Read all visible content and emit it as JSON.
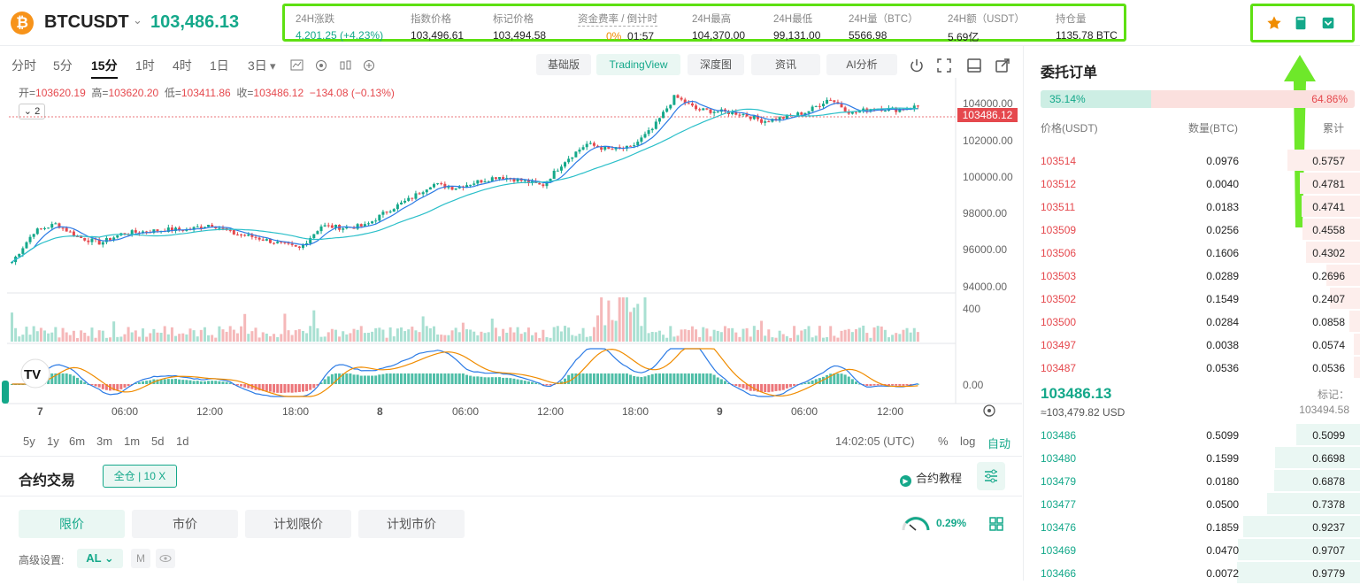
{
  "header": {
    "coin_glyph": "₿",
    "pair": "BTCUSDT",
    "last_price": "103,486.13",
    "stats": [
      {
        "label": "24H涨跌",
        "value": "4,201.25 (+4.23%)",
        "color": "#14a88a"
      },
      {
        "label": "指数价格",
        "value": "103,496.61"
      },
      {
        "label": "标记价格",
        "value": "103,494.58"
      },
      {
        "label": "资金费率 / 倒计时",
        "value": "0%",
        "value2": "01:57"
      },
      {
        "label": "24H最高",
        "value": "104,370.00"
      },
      {
        "label": "24H最低",
        "value": "99,131.00"
      },
      {
        "label": "24H量（BTC）",
        "value": "5566.98"
      },
      {
        "label": "24H额（USDT）",
        "value": "5.69亿"
      },
      {
        "label": "持仓量",
        "value": "1135.78 BTC"
      }
    ],
    "actions": [
      "star-icon",
      "book-icon",
      "wallet-icon"
    ]
  },
  "toolbar": {
    "timeframes": [
      "分时",
      "5分",
      "15分",
      "1时",
      "4时",
      "1日",
      "3日"
    ],
    "active_timeframe": "15分",
    "views": [
      "基础版",
      "TradingView",
      "深度图",
      "资讯",
      "AI分析"
    ],
    "active_view": "TradingView"
  },
  "chart": {
    "ohlc": {
      "o_label": "开=",
      "o": "103620.19",
      "h_label": "高=",
      "h": "103620.20",
      "l_label": "低=",
      "l": "103411.86",
      "c_label": "收=",
      "c": "103486.12",
      "chg": "−134.08 (−0.13%)"
    },
    "indicator_count": "2",
    "price_tag": "103486.12",
    "price_axis": [
      "104000.00",
      "102000.00",
      "100000.00",
      "98000.00",
      "96000.00",
      "94000.00"
    ],
    "volume_axis": "400",
    "macd_axis": "0.00",
    "time_axis": [
      "7",
      "06:00",
      "12:00",
      "18:00",
      "8",
      "06:00",
      "12:00",
      "18:00",
      "9",
      "06:00",
      "12:00"
    ],
    "ranges": [
      "5y",
      "1y",
      "6m",
      "3m",
      "1m",
      "5d",
      "1d"
    ],
    "clock": "14:02:05 (UTC)",
    "scale_opts": [
      "%",
      "log",
      "自动"
    ]
  },
  "chart_data": {
    "type": "candlestick",
    "note_series": "BTCUSDT 15m",
    "ylim": [
      94000,
      104600
    ],
    "close_path": [
      95300,
      96900,
      97300,
      96600,
      96300,
      96800,
      96900,
      97000,
      97000,
      97300,
      96800,
      96600,
      96300,
      96000,
      97200,
      97100,
      97200,
      98000,
      98600,
      99400,
      99200,
      99500,
      99800,
      99600,
      99300,
      100600,
      101500,
      101200,
      101300,
      102300,
      104000,
      103300,
      103200,
      103100,
      102700,
      102900,
      103200,
      103900,
      103100,
      103400,
      103300,
      103486
    ]
  },
  "trade": {
    "title": "合约交易",
    "margin_mode": "全仓 | 10 X",
    "tutorial": "合约教程",
    "order_types": [
      "限价",
      "市价",
      "计划限价",
      "计划市价"
    ],
    "active_order_type": "限价",
    "fee_rate": "0.29%",
    "advanced_label": "高级设置:",
    "advanced_value": "AL",
    "m_label": "M"
  },
  "orderbook": {
    "title": "委托订单",
    "buy_ratio": "35.14%",
    "sell_ratio": "64.86%",
    "buy_ratio_value": 0.3514,
    "headers": [
      "价格(USDT)",
      "数量(BTC)",
      "累计"
    ],
    "asks": [
      {
        "p": "103514",
        "q": "0.0976",
        "c": "0.5757",
        "depth": 0.59
      },
      {
        "p": "103512",
        "q": "0.0040",
        "c": "0.4781",
        "depth": 0.49
      },
      {
        "p": "103511",
        "q": "0.0183",
        "c": "0.4741",
        "depth": 0.48
      },
      {
        "p": "103509",
        "q": "0.0256",
        "c": "0.4558",
        "depth": 0.47
      },
      {
        "p": "103506",
        "q": "0.1606",
        "c": "0.4302",
        "depth": 0.44
      },
      {
        "p": "103503",
        "q": "0.0289",
        "c": "0.2696",
        "depth": 0.28
      },
      {
        "p": "103502",
        "q": "0.1549",
        "c": "0.2407",
        "depth": 0.25
      },
      {
        "p": "103500",
        "q": "0.0284",
        "c": "0.0858",
        "depth": 0.09
      },
      {
        "p": "103497",
        "q": "0.0038",
        "c": "0.0574",
        "depth": 0.06
      },
      {
        "p": "103487",
        "q": "0.0536",
        "c": "0.0536",
        "depth": 0.055
      }
    ],
    "mid_price": "103486.13",
    "mid_usd": "≈103,479.82  USD",
    "mark_label": "标记：",
    "mark_value": "103494.58",
    "bids": [
      {
        "p": "103486",
        "q": "0.5099",
        "c": "0.5099",
        "depth": 0.52
      },
      {
        "p": "103480",
        "q": "0.1599",
        "c": "0.6698",
        "depth": 0.69
      },
      {
        "p": "103479",
        "q": "0.0180",
        "c": "0.6878",
        "depth": 0.7
      },
      {
        "p": "103477",
        "q": "0.0500",
        "c": "0.7378",
        "depth": 0.76
      },
      {
        "p": "103476",
        "q": "0.1859",
        "c": "0.9237",
        "depth": 0.95
      },
      {
        "p": "103469",
        "q": "0.0470",
        "c": "0.9707",
        "depth": 0.99
      },
      {
        "p": "103466",
        "q": "0.0072",
        "c": "0.9779",
        "depth": 1.0
      }
    ],
    "ask_color": "#e5484d",
    "bid_color": "#14a88a"
  }
}
